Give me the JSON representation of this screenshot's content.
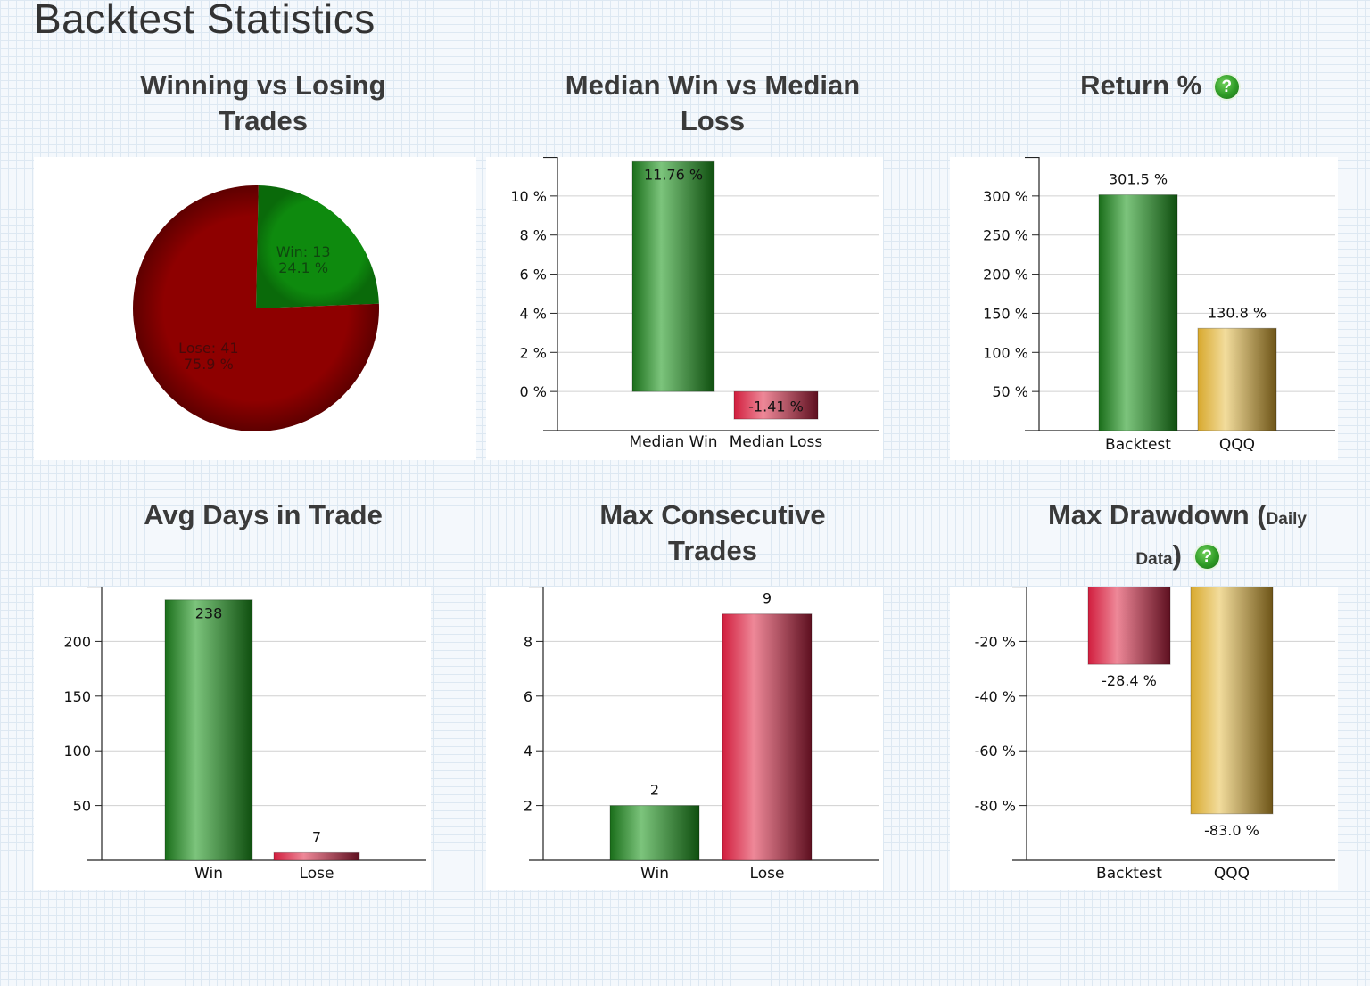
{
  "page": {
    "title": "Backtest Statistics"
  },
  "colors": {
    "win": "#1f8a1f",
    "lose": "#c0243c",
    "qqq": "#c9a23a",
    "pie_win": "#0e8a0e",
    "pie_lose": "#8e0000"
  },
  "chart_data": [
    {
      "id": "winning_vs_losing",
      "type": "pie",
      "title": "Winning vs Losing Trades",
      "slices": [
        {
          "label": "Win: 13",
          "pct_label": "24.1 %",
          "value": 13,
          "color": "#0e8a0e"
        },
        {
          "label": "Lose: 41",
          "pct_label": "75.9 %",
          "value": 41,
          "color": "#8e0000"
        }
      ]
    },
    {
      "id": "median_win_loss",
      "type": "bar",
      "title": "Median Win vs Median Loss",
      "categories": [
        "Median Win",
        "Median Loss"
      ],
      "values": [
        11.76,
        -1.41
      ],
      "data_labels": [
        "11.76 %",
        "-1.41 %"
      ],
      "bar_colors": [
        "win",
        "lose"
      ],
      "yticks": [
        0,
        2,
        4,
        6,
        8,
        10
      ],
      "ytick_labels": [
        "0 %",
        "2 %",
        "4 %",
        "6 %",
        "8 %",
        "10 %"
      ],
      "ylim": [
        -2,
        12
      ]
    },
    {
      "id": "return_pct",
      "type": "bar",
      "title": "Return %",
      "categories": [
        "Backtest",
        "QQQ"
      ],
      "values": [
        301.5,
        130.8
      ],
      "data_labels": [
        "301.5 %",
        "130.8 %"
      ],
      "bar_colors": [
        "win",
        "qqq"
      ],
      "yticks": [
        50,
        100,
        150,
        200,
        250,
        300
      ],
      "ytick_labels": [
        "50 %",
        "100 %",
        "150 %",
        "200 %",
        "250 %",
        "300 %"
      ],
      "ylim": [
        0,
        350
      ]
    },
    {
      "id": "avg_days",
      "type": "bar",
      "title": "Avg Days in Trade",
      "categories": [
        "Win",
        "Lose"
      ],
      "values": [
        238,
        7
      ],
      "data_labels": [
        "238",
        "7"
      ],
      "bar_colors": [
        "win",
        "lose"
      ],
      "yticks": [
        50,
        100,
        150,
        200
      ],
      "ytick_labels": [
        "50",
        "100",
        "150",
        "200"
      ],
      "ylim": [
        0,
        250
      ]
    },
    {
      "id": "max_consecutive",
      "type": "bar",
      "title": "Max Consecutive Trades",
      "categories": [
        "Win",
        "Lose"
      ],
      "values": [
        2,
        9
      ],
      "data_labels": [
        "2",
        "9"
      ],
      "bar_colors": [
        "win",
        "lose"
      ],
      "yticks": [
        2,
        4,
        6,
        8
      ],
      "ytick_labels": [
        "2",
        "4",
        "6",
        "8"
      ],
      "ylim": [
        0,
        10
      ]
    },
    {
      "id": "max_drawdown",
      "type": "bar",
      "title": "Max Drawdown (",
      "title_small": "Daily Data",
      "title_end": ")",
      "categories": [
        "Backtest",
        "QQQ"
      ],
      "values": [
        -28.4,
        -83.0
      ],
      "data_labels": [
        "-28.4 %",
        "-83.0 %"
      ],
      "bar_colors": [
        "lose",
        "qqq"
      ],
      "yticks": [
        -20,
        -40,
        -60,
        -80
      ],
      "ytick_labels": [
        "-20 %",
        "-40 %",
        "-60 %",
        "-80 %"
      ],
      "ylim": [
        -100,
        0
      ]
    }
  ]
}
